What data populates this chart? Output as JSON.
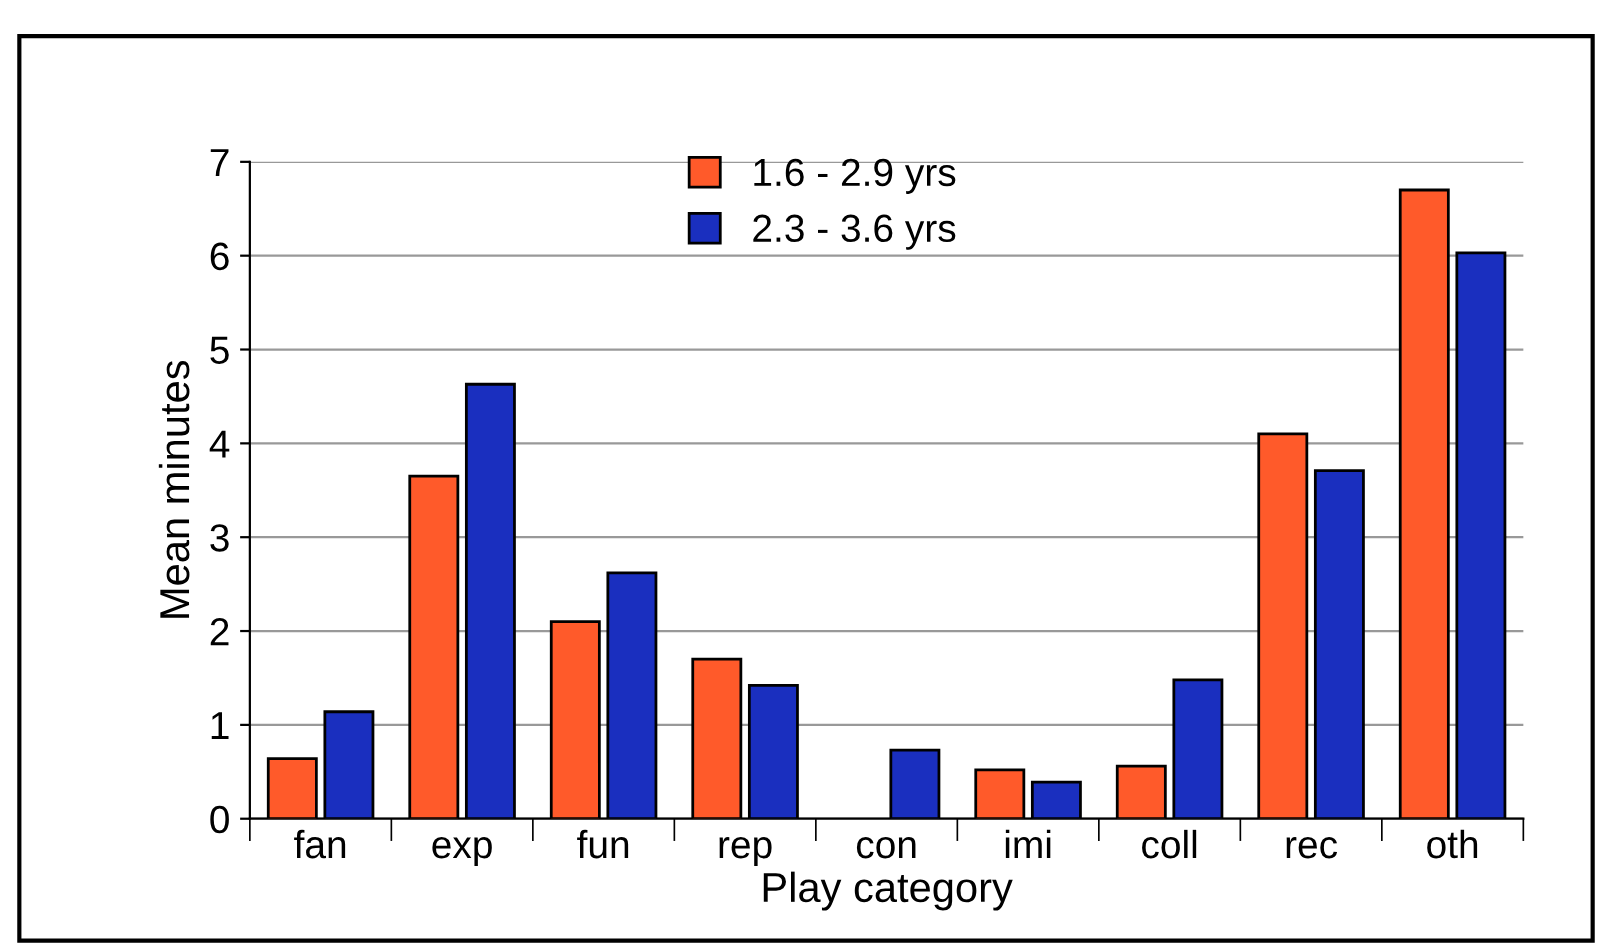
{
  "chart_data": {
    "type": "bar",
    "xlabel": "Play category",
    "ylabel": "Mean minutes",
    "categories": [
      "fan",
      "exp",
      "fun",
      "rep",
      "con",
      "imi",
      "coll",
      "rec",
      "oth"
    ],
    "series": [
      {
        "name": "1.6 - 2.9 yrs",
        "color": "#ff5a2a",
        "values": [
          0.64,
          3.65,
          2.1,
          1.7,
          null,
          0.52,
          0.56,
          4.1,
          6.7
        ]
      },
      {
        "name": "2.3 - 3.6 yrs",
        "color": "#1a2fbf",
        "values": [
          1.14,
          4.63,
          2.62,
          1.42,
          0.73,
          0.39,
          1.48,
          3.71,
          6.03
        ]
      }
    ],
    "ylim": [
      0,
      7
    ],
    "yticks": [
      0,
      1,
      2,
      3,
      4,
      5,
      6,
      7
    ],
    "grid": "y",
    "legend": "top"
  }
}
